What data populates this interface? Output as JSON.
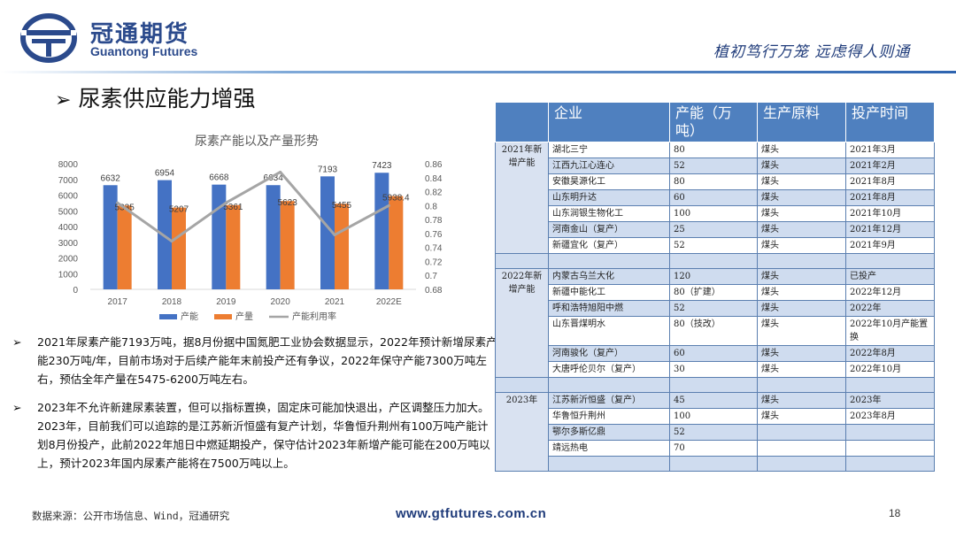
{
  "header": {
    "logo_cn": "冠通期货",
    "logo_en": "Guantong Futures",
    "slogan": "植初笃行万笼  远虑得人则通"
  },
  "title": "尿素供应能力增强",
  "chart_data": {
    "type": "bar",
    "title": "尿素产能以及产量形势",
    "categories": [
      "2017",
      "2018",
      "2019",
      "2020",
      "2021",
      "2022E"
    ],
    "series": [
      {
        "name": "产能",
        "kind": "bar",
        "axis": "left",
        "color": "#4472c4",
        "values": [
          6632,
          6954,
          6668,
          6634,
          7193,
          7423
        ]
      },
      {
        "name": "产量",
        "kind": "bar",
        "axis": "left",
        "color": "#ed7d31",
        "values": [
          5335,
          5207,
          5361,
          5623,
          5455,
          5938.4
        ]
      },
      {
        "name": "产能利用率",
        "kind": "line",
        "axis": "right",
        "color": "#a5a5a5",
        "values": [
          0.804,
          0.749,
          0.804,
          0.848,
          0.758,
          0.8
        ]
      }
    ],
    "ylim": [
      0,
      8000
    ],
    "yticks": [
      "0",
      "1000",
      "2000",
      "3000",
      "4000",
      "5000",
      "6000",
      "7000",
      "8000"
    ],
    "y2lim": [
      0.68,
      0.86
    ],
    "y2ticks": [
      "0.68",
      "0.7",
      "0.72",
      "0.74",
      "0.76",
      "0.78",
      "0.8",
      "0.82",
      "0.84",
      "0.86"
    ],
    "bar1_labels": [
      "6632",
      "6954",
      "6668",
      "6634",
      "7193",
      "7423"
    ],
    "bar2_labels": [
      "5335",
      "5207",
      "5361",
      "5623",
      "5455",
      "5938.4"
    ],
    "legend": [
      "产能",
      "产量",
      "产能利用率"
    ],
    "legend_position": "bottom",
    "grid": false
  },
  "bullets": [
    "2021年尿素产能7193万吨，据8月份据中国氮肥工业协会数据显示，2022年预计新增尿素产能230万吨/年，目前市场对于后续产能年末前投产还有争议，2022年保守产能7300万吨左右，预估全年产量在5475-6200万吨左右。",
    "2023年不允许新建尿素装置，但可以指标置换，固定床可能加快退出，产区调整压力加大。2023年，目前我们可以追踪的是江苏新沂恒盛有复产计划，华鲁恒升荆州有100万吨产能计划8月份投产，此前2022年旭日中燃延期投产，保守估计2023年新增产能可能在200万吨以上，预计2023年国内尿素产能将在7500万吨以上。"
  ],
  "bullet_mark": "➢",
  "table": {
    "headers": [
      "",
      "企业",
      "产能（万吨）",
      "生产原料",
      "投产时间"
    ],
    "groups": [
      {
        "label": "2021年新增产能",
        "rows": [
          [
            "湖北三宁",
            "80",
            "煤头",
            "2021年3月"
          ],
          [
            "江西九江心连心",
            "52",
            "煤头",
            "2021年2月"
          ],
          [
            "安徽昊源化工",
            "80",
            "煤头",
            "2021年8月"
          ],
          [
            "山东明升达",
            "60",
            "煤头",
            "2021年8月"
          ],
          [
            "山东润银生物化工",
            "100",
            "煤头",
            "2021年10月"
          ],
          [
            "河南金山（复产）",
            "25",
            "煤头",
            "2021年12月"
          ],
          [
            "新疆宜化（复产）",
            "52",
            "煤头",
            "2021年9月"
          ]
        ]
      },
      {
        "label": "2022年新增产能",
        "rows": [
          [
            "内蒙古乌兰大化",
            "120",
            "煤头",
            "已投产"
          ],
          [
            "新疆中能化工",
            "80（扩建）",
            "煤头",
            "2022年12月"
          ],
          [
            "呼和浩特旭阳中燃",
            "52",
            "煤头",
            "2022年"
          ],
          [
            "山东晋煤明水",
            "80（技改）",
            "煤头",
            "2022年10月产能置换"
          ],
          [
            "河南骏化（复产）",
            "60",
            "煤头",
            "2022年8月"
          ],
          [
            "大唐呼伦贝尔（复产）",
            "30",
            "煤头",
            "2022年10月"
          ]
        ]
      },
      {
        "label": "2023年",
        "rows": [
          [
            "江苏新沂恒盛（复产）",
            "45",
            "煤头",
            "2023年"
          ],
          [
            "华鲁恒升荆州",
            "100",
            "煤头",
            "2023年8月"
          ],
          [
            "鄂尔多斯亿鼎",
            "52",
            "",
            ""
          ],
          [
            "靖远热电",
            "70",
            "",
            ""
          ]
        ]
      }
    ]
  },
  "footer": {
    "source": "数据来源：公开市场信息、Wind，冠通研究",
    "url": "www.gtfutures.com.cn",
    "page": "18"
  },
  "colors": {
    "brand": "#2b4a8c",
    "table_header": "#4f80bf",
    "table_stripe": "#cfdcef"
  }
}
